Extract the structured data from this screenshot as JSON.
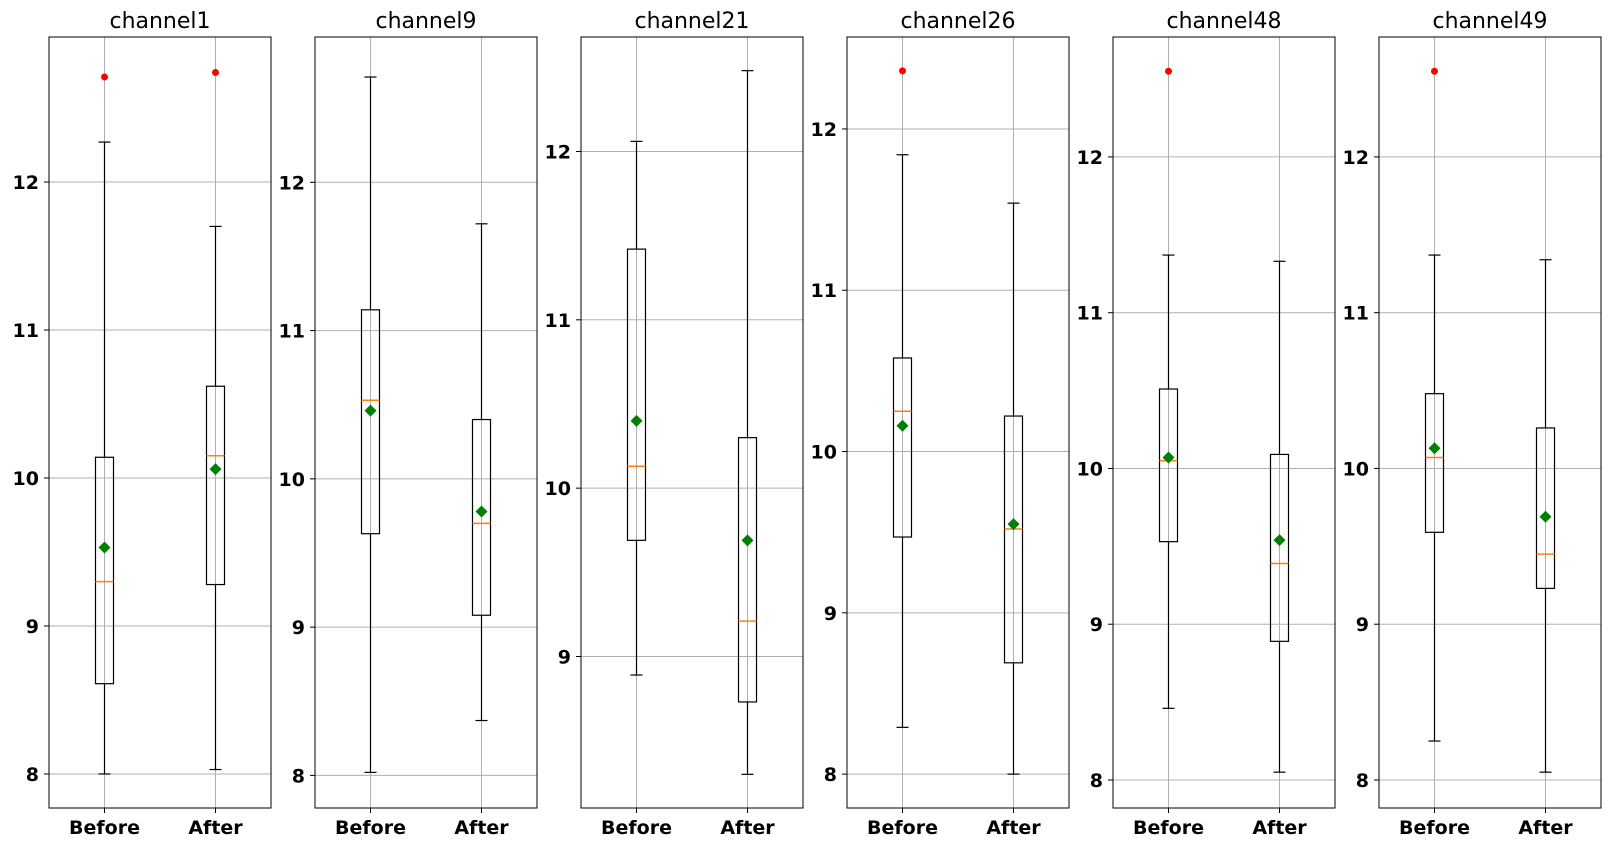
{
  "colors": {
    "box": "#000000",
    "median": "#ff7f0e",
    "mean_marker": "#008000",
    "outlier": "#ff0000",
    "grid": "#b0b0b0"
  },
  "chart_data": [
    {
      "type": "boxplot",
      "title": "channel1",
      "categories": [
        "Before",
        "After"
      ],
      "ylim": [
        7.77,
        12.98
      ],
      "yticks": [
        8,
        9,
        10,
        11,
        12
      ],
      "grid": true,
      "boxes": [
        {
          "category": "Before",
          "whisker_low": 8.0,
          "q1": 8.61,
          "median": 9.3,
          "mean": 9.53,
          "q3": 10.14,
          "whisker_high": 12.27,
          "outliers": [
            12.71
          ]
        },
        {
          "category": "After",
          "whisker_low": 8.03,
          "q1": 9.28,
          "median": 10.15,
          "mean": 10.06,
          "q3": 10.62,
          "whisker_high": 11.7,
          "outliers": [
            12.74
          ]
        }
      ]
    },
    {
      "type": "boxplot",
      "title": "channel9",
      "categories": [
        "Before",
        "After"
      ],
      "ylim": [
        7.78,
        12.98
      ],
      "yticks": [
        8,
        9,
        10,
        11,
        12
      ],
      "grid": true,
      "boxes": [
        {
          "category": "Before",
          "whisker_low": 8.02,
          "q1": 9.63,
          "median": 10.53,
          "mean": 10.46,
          "q3": 11.14,
          "whisker_high": 12.71,
          "outliers": []
        },
        {
          "category": "After",
          "whisker_low": 8.37,
          "q1": 9.08,
          "median": 9.7,
          "mean": 9.78,
          "q3": 10.4,
          "whisker_high": 11.72,
          "outliers": []
        }
      ]
    },
    {
      "type": "boxplot",
      "title": "channel21",
      "categories": [
        "Before",
        "After"
      ],
      "ylim": [
        8.1,
        12.68
      ],
      "yticks": [
        9,
        10,
        11,
        12
      ],
      "grid": true,
      "boxes": [
        {
          "category": "Before",
          "whisker_low": 8.89,
          "q1": 9.69,
          "median": 10.13,
          "mean": 10.4,
          "q3": 11.42,
          "whisker_high": 12.06,
          "outliers": []
        },
        {
          "category": "After",
          "whisker_low": 8.3,
          "q1": 8.73,
          "median": 9.21,
          "mean": 9.69,
          "q3": 10.3,
          "whisker_high": 12.48,
          "outliers": []
        }
      ]
    },
    {
      "type": "boxplot",
      "title": "channel26",
      "categories": [
        "Before",
        "After"
      ],
      "ylim": [
        7.79,
        12.57
      ],
      "yticks": [
        8,
        9,
        10,
        11,
        12
      ],
      "grid": true,
      "boxes": [
        {
          "category": "Before",
          "whisker_low": 8.29,
          "q1": 9.47,
          "median": 10.25,
          "mean": 10.16,
          "q3": 10.58,
          "whisker_high": 11.84,
          "outliers": [
            12.36
          ]
        },
        {
          "category": "After",
          "whisker_low": 8.0,
          "q1": 8.69,
          "median": 9.52,
          "mean": 9.55,
          "q3": 10.22,
          "whisker_high": 11.54,
          "outliers": []
        }
      ]
    },
    {
      "type": "boxplot",
      "title": "channel48",
      "categories": [
        "Before",
        "After"
      ],
      "ylim": [
        7.82,
        12.77
      ],
      "yticks": [
        8,
        9,
        10,
        11,
        12
      ],
      "grid": true,
      "boxes": [
        {
          "category": "Before",
          "whisker_low": 8.46,
          "q1": 9.53,
          "median": 10.05,
          "mean": 10.07,
          "q3": 10.51,
          "whisker_high": 11.37,
          "outliers": [
            12.55
          ]
        },
        {
          "category": "After",
          "whisker_low": 8.05,
          "q1": 8.89,
          "median": 9.39,
          "mean": 9.54,
          "q3": 10.09,
          "whisker_high": 11.33,
          "outliers": []
        }
      ]
    },
    {
      "type": "boxplot",
      "title": "channel49",
      "categories": [
        "Before",
        "After"
      ],
      "ylim": [
        7.82,
        12.77
      ],
      "yticks": [
        8,
        9,
        10,
        11,
        12
      ],
      "grid": true,
      "boxes": [
        {
          "category": "Before",
          "whisker_low": 8.25,
          "q1": 9.59,
          "median": 10.07,
          "mean": 10.13,
          "q3": 10.48,
          "whisker_high": 11.37,
          "outliers": [
            12.55
          ]
        },
        {
          "category": "After",
          "whisker_low": 8.05,
          "q1": 9.23,
          "median": 9.45,
          "mean": 9.69,
          "q3": 10.26,
          "whisker_high": 11.34,
          "outliers": []
        }
      ]
    }
  ]
}
